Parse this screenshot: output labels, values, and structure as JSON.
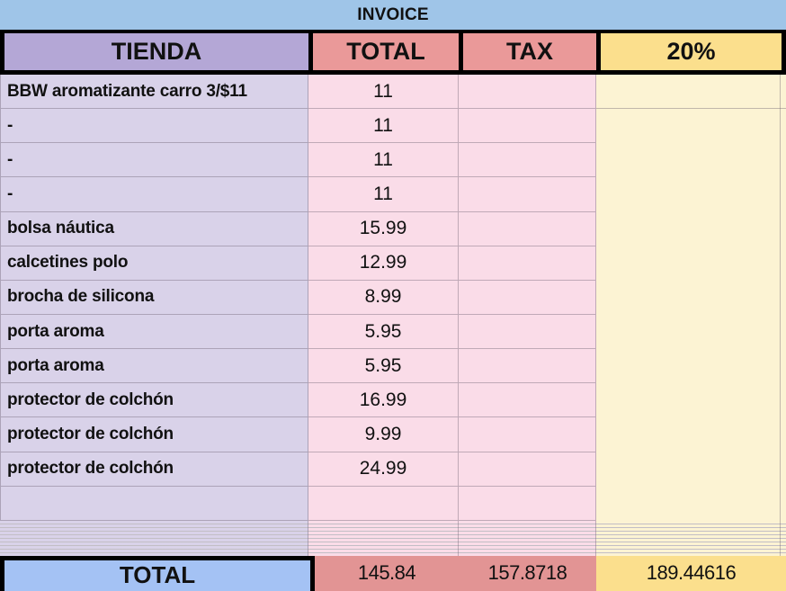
{
  "title": "INVOICE",
  "header": {
    "tienda": "TIENDA",
    "total": "TOTAL",
    "tax": "TAX",
    "pct": "20%"
  },
  "rows": [
    {
      "item": "BBW aromatizante carro 3/$11",
      "total": "11",
      "tax": "",
      "pct": ""
    },
    {
      "item": "-",
      "total": "11",
      "tax": "",
      "pct": ""
    },
    {
      "item": "-",
      "total": "11",
      "tax": "",
      "pct": ""
    },
    {
      "item": "-",
      "total": "11",
      "tax": "",
      "pct": ""
    },
    {
      "item": "bolsa náutica",
      "total": "15.99",
      "tax": "",
      "pct": ""
    },
    {
      "item": "calcetines polo",
      "total": "12.99",
      "tax": "",
      "pct": ""
    },
    {
      "item": "brocha de silicona",
      "total": "8.99",
      "tax": "",
      "pct": ""
    },
    {
      "item": "porta aroma",
      "total": "5.95",
      "tax": "",
      "pct": ""
    },
    {
      "item": "porta aroma",
      "total": "5.95",
      "tax": "",
      "pct": ""
    },
    {
      "item": "protector de colchón",
      "total": "16.99",
      "tax": "",
      "pct": ""
    },
    {
      "item": "protector de colchón",
      "total": "9.99",
      "tax": "",
      "pct": ""
    },
    {
      "item": "protector de colchón",
      "total": "24.99",
      "tax": "",
      "pct": ""
    },
    {
      "item": "",
      "total": "",
      "tax": "",
      "pct": ""
    }
  ],
  "footer": {
    "label": "TOTAL",
    "total": "145.84",
    "tax": "157.8718",
    "pct": "189.44616"
  },
  "colors": {
    "title_bar": "#9fc5e8",
    "header_tienda": "#b4a7d6",
    "header_total": "#ea9999",
    "header_tax": "#ea9999",
    "header_pct": "#fbdf8d",
    "body_tienda": "#d9d2e9",
    "body_total": "#fadce8",
    "body_tax": "#fadce8",
    "body_pct": "#fcf3d3",
    "footer_tienda": "#a4c2f4",
    "footer_total": "#e29494",
    "footer_tax": "#e29494",
    "footer_pct": "#fbdf8d",
    "grid": "rgba(104,92,110,0.40)"
  }
}
